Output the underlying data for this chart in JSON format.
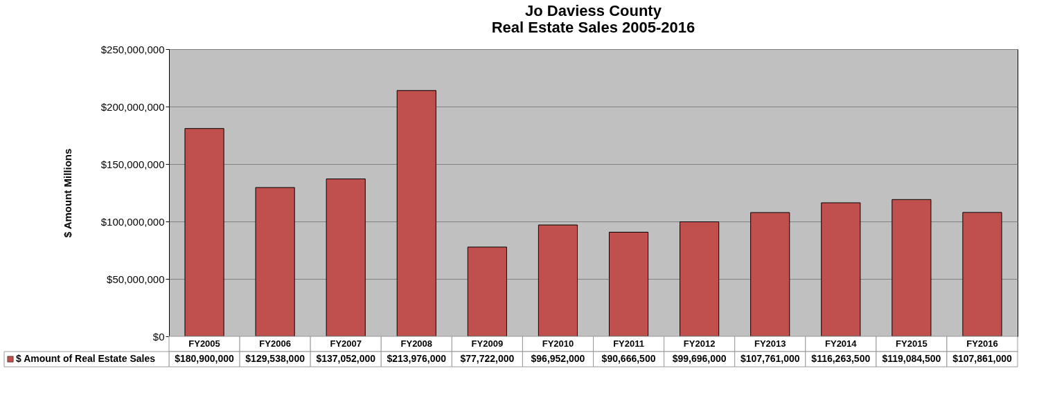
{
  "chart_data": {
    "type": "bar",
    "title": "Jo Daviess County\nReal Estate Sales 2005-2016",
    "ylabel": "$ Amount Millions",
    "categories": [
      "FY2005",
      "FY2006",
      "FY2007",
      "FY2008",
      "FY2009",
      "FY2010",
      "FY2011",
      "FY2012",
      "FY2013",
      "FY2014",
      "FY2015",
      "FY2016"
    ],
    "series": [
      {
        "name": "$ Amount of Real Estate Sales",
        "color": "#c0504d",
        "values": [
          180900000,
          129538000,
          137052000,
          213976000,
          77722000,
          96952000,
          90666500,
          99696000,
          107761000,
          116263500,
          119084500,
          107861000
        ],
        "value_labels": [
          "$180,900,000",
          "$129,538,000",
          "$137,052,000",
          "$213,976,000",
          "$77,722,000",
          "$96,952,000",
          "$90,666,500",
          "$99,696,000",
          "$107,761,000",
          "$116,263,500",
          "$119,084,500",
          "$107,861,000"
        ]
      }
    ],
    "ylim": [
      0,
      250000000
    ],
    "yticks": [
      {
        "value": 0,
        "label": "$0"
      },
      {
        "value": 50000000,
        "label": "$50,000,000"
      },
      {
        "value": 100000000,
        "label": "$100,000,000"
      },
      {
        "value": 150000000,
        "label": "$150,000,000"
      },
      {
        "value": 200000000,
        "label": "$200,000,000"
      },
      {
        "value": 250000000,
        "label": "$250,000,000"
      }
    ],
    "grid": "y",
    "legend": "bottom"
  }
}
